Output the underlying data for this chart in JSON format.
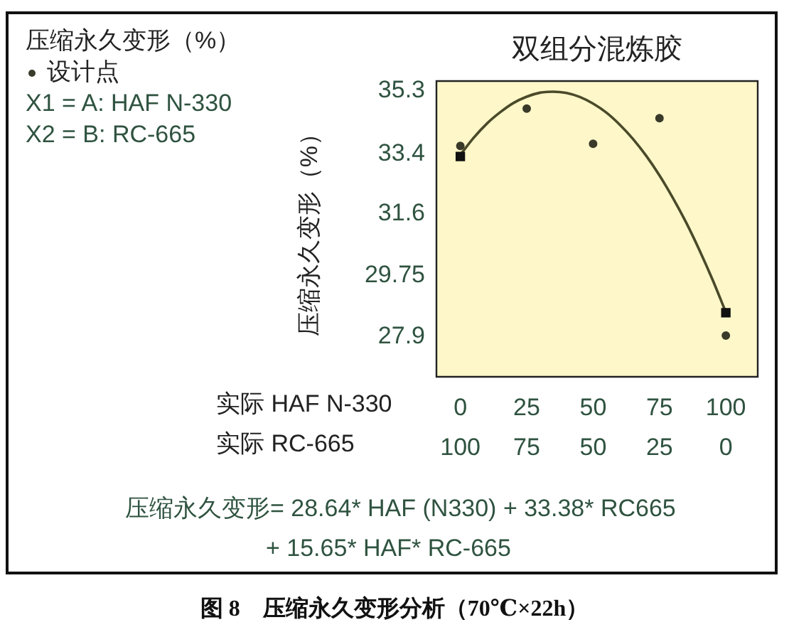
{
  "chart_data": {
    "type": "scatter",
    "title": "双组分混炼胶",
    "ylabel": "压缩永久变形（%）",
    "xlabel": "实际 HAF N-330",
    "x2label": "实际 RC-665",
    "legend_title": "压缩永久变形（%）",
    "legend": "top left",
    "xlim": [
      -9,
      112
    ],
    "xticks": [
      0,
      25,
      50,
      75,
      100
    ],
    "x2lim": [
      109,
      -12
    ],
    "x2ticks": [
      100,
      75,
      50,
      25,
      0
    ],
    "ylim": [
      26.7,
      35.6
    ],
    "yticks": [
      35.3,
      33.4,
      31.6,
      29.75,
      27.9
    ],
    "series": [
      {
        "name": "设计点",
        "marker": "circle",
        "color": "#3a3a2a",
        "x": [
          0,
          25,
          50,
          75,
          100
        ],
        "values": [
          33.65,
          34.77,
          33.71,
          34.48,
          27.94
        ]
      },
      {
        "marker": "square",
        "color": "#111111",
        "x": [
          0,
          100
        ],
        "values": [
          33.33,
          28.63
        ]
      },
      {
        "type": "line",
        "marker": "none",
        "line_style": "solid",
        "color": "#4a4a2a",
        "x": [
          0,
          5,
          10,
          15,
          20,
          25,
          30,
          35,
          40,
          45,
          50,
          55,
          60,
          65,
          70,
          75,
          80,
          85,
          90,
          95,
          100
        ],
        "values": [
          33.38,
          33.89,
          34.32,
          34.66,
          34.94,
          35.13,
          35.25,
          35.28,
          35.24,
          35.12,
          34.92,
          34.65,
          34.29,
          33.86,
          33.35,
          32.76,
          32.09,
          31.35,
          30.52,
          29.62,
          28.64
        ]
      }
    ],
    "annotations": [
      "X1 = A: HAF N-330",
      "X2 = B: RC-665",
      "压缩永久变形= 28.64* HAF (N330) + 33.38* RC665",
      "+ 15.65* HAF* RC-665",
      "图 8　压缩永久变形分析（70℃×22h）"
    ]
  }
}
